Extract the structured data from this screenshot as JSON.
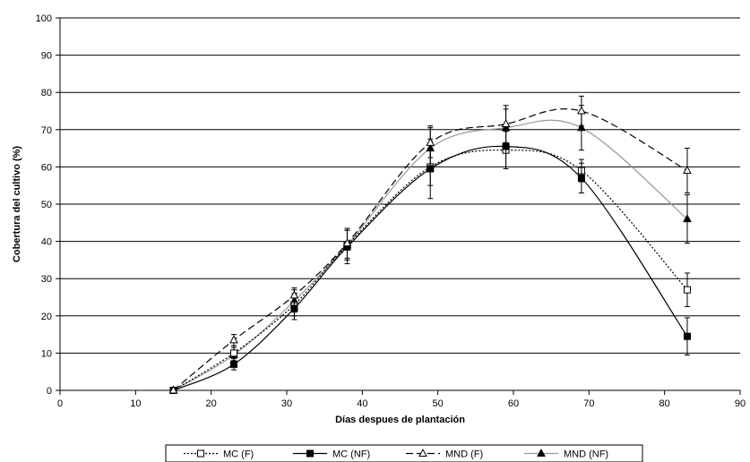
{
  "chart_data": {
    "type": "line",
    "title": "",
    "xlabel": "Días despues de plantación",
    "ylabel": "Cobertura del cultivo (%)",
    "xlim": [
      0,
      90
    ],
    "ylim": [
      0,
      100
    ],
    "xticks": [
      0,
      10,
      20,
      30,
      40,
      50,
      60,
      70,
      80,
      90
    ],
    "yticks": [
      0,
      10,
      20,
      30,
      40,
      50,
      60,
      70,
      80,
      90,
      100
    ],
    "grid": "horizontal",
    "legend_position": "bottom",
    "x": [
      15,
      23,
      31,
      38,
      49,
      59,
      69,
      83
    ],
    "series": [
      {
        "name": "MC (F)",
        "values": [
          0,
          10,
          23,
          39,
          60,
          64.5,
          59,
          27
        ],
        "errors": [
          0,
          2,
          3,
          4,
          5,
          5,
          3,
          4.5
        ],
        "marker": "open-square",
        "line": "dotted",
        "color": "#000000"
      },
      {
        "name": "MC (NF)",
        "values": [
          0,
          7,
          22,
          38.5,
          59.5,
          65.5,
          57,
          14.5
        ],
        "errors": [
          0,
          1.5,
          3,
          4.5,
          8,
          6,
          4,
          5
        ],
        "marker": "filled-square",
        "line": "solid",
        "color": "#000000"
      },
      {
        "name": "MND (F)",
        "values": [
          0,
          13.5,
          25.5,
          39.5,
          66.5,
          71.5,
          75,
          59
        ],
        "errors": [
          0,
          1.5,
          2,
          4,
          4,
          5,
          4,
          6
        ],
        "marker": "open-triangle",
        "line": "dashed",
        "color": "#000000"
      },
      {
        "name": "MND (NF)",
        "values": [
          0,
          9.5,
          24,
          39,
          65,
          70.5,
          70.5,
          46
        ],
        "errors": [
          0,
          2,
          3,
          4,
          6,
          5,
          6,
          6.5
        ],
        "marker": "filled-triangle",
        "line": "solid",
        "color": "#999999"
      }
    ]
  }
}
